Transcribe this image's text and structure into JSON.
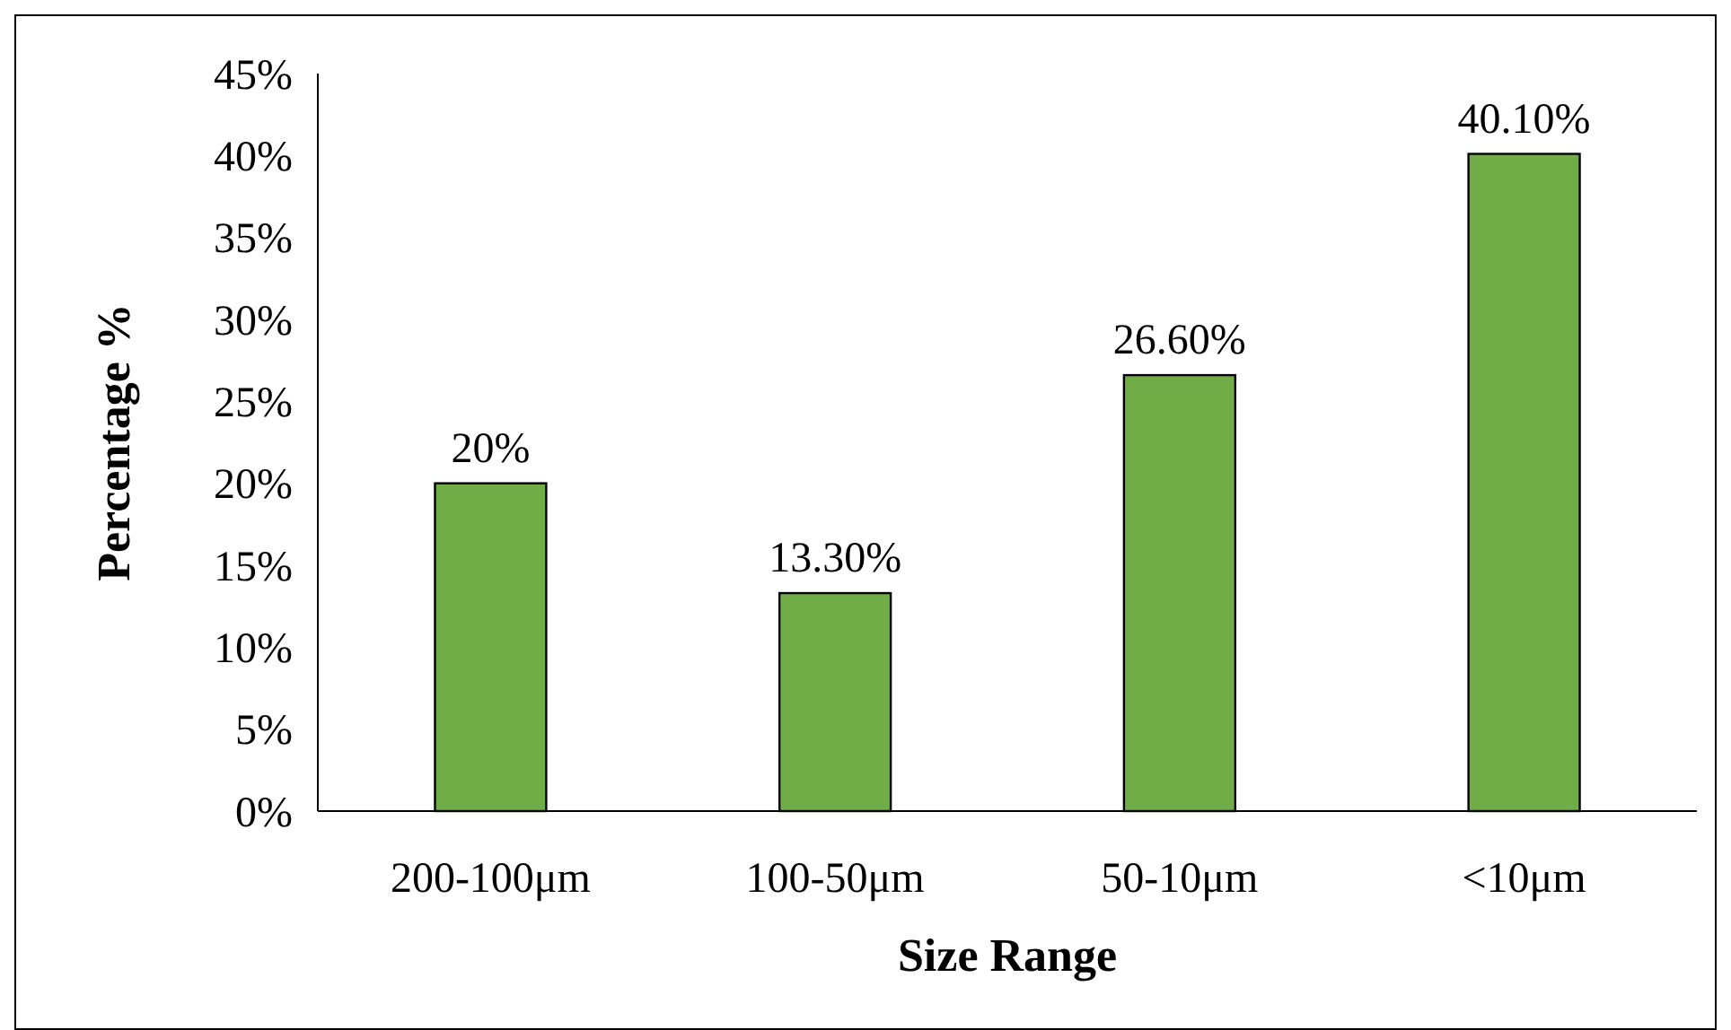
{
  "chart_data": {
    "type": "bar",
    "xlabel": "Size Range",
    "ylabel": "Percentage %",
    "categories": [
      "200-100μm",
      "100-50μm",
      "50-10μm",
      "<10μm"
    ],
    "values": [
      20,
      13.3,
      26.6,
      40.1
    ],
    "value_labels": [
      "20%",
      "13.30%",
      "26.60%",
      "40.10%"
    ],
    "color": "#70ad47",
    "ylim": [
      0,
      45
    ],
    "yticks": [
      {
        "value": 0,
        "label": "0%"
      },
      {
        "value": 5,
        "label": "5%"
      },
      {
        "value": 10,
        "label": "10%"
      },
      {
        "value": 15,
        "label": "15%"
      },
      {
        "value": 20,
        "label": "20%"
      },
      {
        "value": 25,
        "label": "25%"
      },
      {
        "value": 30,
        "label": "30%"
      },
      {
        "value": 35,
        "label": "35%"
      },
      {
        "value": 40,
        "label": "40%"
      },
      {
        "value": 45,
        "label": "45%"
      }
    ],
    "grid": false
  }
}
